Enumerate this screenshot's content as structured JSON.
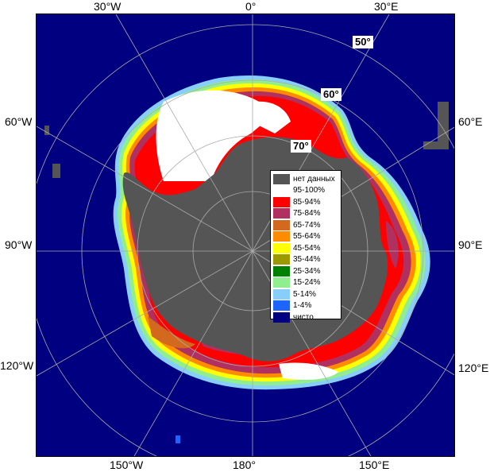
{
  "longitude_labels": {
    "top": [
      "30°W",
      "0°",
      "30°E"
    ],
    "left": [
      "60°W",
      "90°W",
      "120°W"
    ],
    "right": [
      "60°E",
      "90°E",
      "120°E"
    ],
    "bottom": [
      "150°W",
      "180°",
      "150°E"
    ]
  },
  "latitude_labels": [
    "50°",
    "60°",
    "70°"
  ],
  "legend": {
    "items": [
      {
        "label": "нет данных",
        "color": "#555555"
      },
      {
        "label": "95-100%",
        "color": "#ffffff"
      },
      {
        "label": "85-94%",
        "color": "#ff0000"
      },
      {
        "label": "75-84%",
        "color": "#b03060"
      },
      {
        "label": "65-74%",
        "color": "#d2691e"
      },
      {
        "label": "55-64%",
        "color": "#ff8c00"
      },
      {
        "label": "45-54%",
        "color": "#ffff00"
      },
      {
        "label": "35-44%",
        "color": "#9a9a00"
      },
      {
        "label": "25-34%",
        "color": "#008000"
      },
      {
        "label": "15-24%",
        "color": "#90ee90"
      },
      {
        "label": "5-14%",
        "color": "#87cefa"
      },
      {
        "label": "1-4%",
        "color": "#1e64ff"
      },
      {
        "label": "чисто",
        "color": "#000080"
      }
    ]
  },
  "colors": {
    "open_water": "#000080",
    "land": "#555555",
    "grid": "#aaaaaa",
    "ice_high": "#ff0000",
    "ice_full": "#ffffff"
  }
}
